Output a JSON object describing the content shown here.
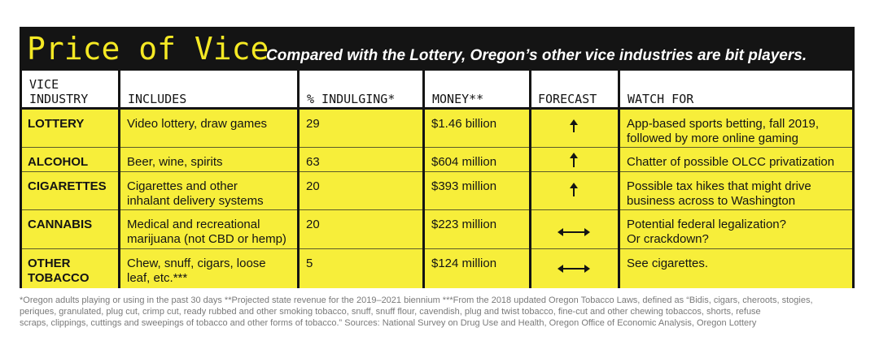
{
  "title": "Price of Vice",
  "subtitle": "Compared with the Lottery, Oregon’s other vice industries are bit players.",
  "colors": {
    "banner": "#141414",
    "title_yellow": "#f5e924",
    "row_yellow": "#f7ee3a",
    "footnote_gray": "#7a7a7a"
  },
  "headers": {
    "vice_industry_line1": "VICE",
    "vice_industry_line2": "INDUSTRY",
    "includes": "INCLUDES",
    "pct_indulging": "% INDULGING*",
    "money": "MONEY**",
    "forecast": "FORECAST",
    "watch_for": "WATCH FOR"
  },
  "rows": [
    {
      "industry_1": "LOTTERY",
      "industry_2": "",
      "includes_1": "Video lottery, draw games",
      "includes_2": "",
      "pct": "29",
      "money": "$1.46 billion",
      "forecast": "up-arrow-icon",
      "watch_1": "App-based sports betting, fall 2019,",
      "watch_2": "followed by more online gaming"
    },
    {
      "industry_1": "ALCOHOL",
      "industry_2": "",
      "includes_1": "Beer, wine, spirits",
      "includes_2": "",
      "pct": "63",
      "money": "$604 million",
      "forecast": "up-arrow-icon",
      "watch_1": "Chatter of possible OLCC privatization",
      "watch_2": ""
    },
    {
      "industry_1": "CIGARETTES",
      "industry_2": "",
      "includes_1": "Cigarettes and other",
      "includes_2": "inhalant delivery systems",
      "pct": "20",
      "money": "$393 million",
      "forecast": "up-arrow-icon",
      "watch_1": "Possible tax hikes that might drive",
      "watch_2": "business across to Washington"
    },
    {
      "industry_1": "CANNABIS",
      "industry_2": "",
      "includes_1": "Medical and recreational",
      "includes_2": "marijuana (not CBD or hemp)",
      "pct": "20",
      "money": "$223 million",
      "forecast": "left-right-arrow-icon",
      "watch_1": "Potential federal legalization?",
      "watch_2": "Or crackdown?"
    },
    {
      "industry_1": "OTHER",
      "industry_2": "TOBACCO",
      "includes_1": "Chew, snuff, cigars, loose",
      "includes_2": "leaf, etc.***",
      "pct": "5",
      "money": "$124 million",
      "forecast": "left-right-arrow-icon",
      "watch_1": "See cigarettes.",
      "watch_2": ""
    }
  ],
  "footnote": {
    "line1": "*Oregon adults playing or using in the past 30 days **Projected state revenue for the 2019–2021 biennium ***From the 2018 updated Oregon Tobacco Laws, defined as “Bidis, cigars, cheroots, stogies,",
    "line2": "periques, granulated, plug cut, crimp cut, ready rubbed and other smoking tobacco, snuff, snuff flour, cavendish, plug and twist tobacco, fine-cut and other chewing tobaccos, shorts, refuse",
    "line3": "scraps, clippings, cuttings and sweepings of tobacco and other forms of tobacco.” Sources: National Survey on Drug Use and Health, Oregon Office of Economic Analysis, Oregon Lottery"
  }
}
